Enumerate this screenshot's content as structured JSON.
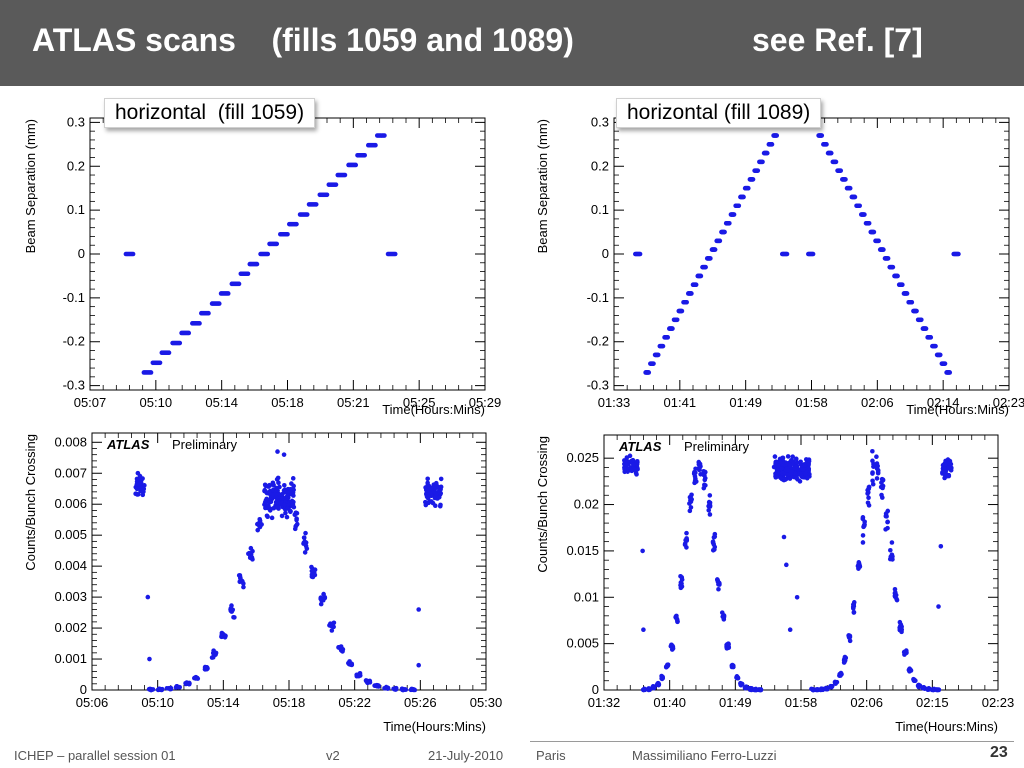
{
  "header": {
    "title": "ATLAS scans    (fills 1059 and 1089)",
    "reference": "see Ref. [7]"
  },
  "colors": {
    "marker": "#1a1ae6",
    "header_bg": "#5a5a5a"
  },
  "footer": {
    "conference": "ICHEP – parallel session 01",
    "version": "v2",
    "date": "21-July-2010",
    "place": "Paris",
    "author": "Massimiliano Ferro-Luzzi",
    "page": "23"
  },
  "chart_data": [
    {
      "id": "scan-1059",
      "type": "scatter",
      "label": "horizontal  (fill 1059)",
      "xlabel": "Time(Hours:Mins)",
      "ylabel": "Beam Separation (mm)",
      "x_ticks": [
        "05:07",
        "05:10",
        "05:14",
        "05:18",
        "05:21",
        "05:25",
        "05:29"
      ],
      "xlim_minutes": [
        307,
        329
      ],
      "ylim": [
        -0.31,
        0.31
      ],
      "y_ticks": [
        -0.3,
        -0.2,
        -0.1,
        0,
        0.1,
        0.2,
        0.3
      ],
      "y_tick_labels": [
        "-0.3",
        "-0.2",
        "-0.1",
        "0",
        "0.1",
        "0.2",
        "0.3"
      ],
      "grid": false,
      "step_plateaus": [
        {
          "x": [
            309.0,
            309.4
          ],
          "y": 0
        },
        {
          "x": [
            310.0,
            310.4
          ],
          "y": -0.27
        },
        {
          "x": [
            310.5,
            310.9
          ],
          "y": -0.248
        },
        {
          "x": [
            311.0,
            311.4
          ],
          "y": -0.225
        },
        {
          "x": [
            311.6,
            312.0
          ],
          "y": -0.203
        },
        {
          "x": [
            312.1,
            312.5
          ],
          "y": -0.18
        },
        {
          "x": [
            312.7,
            313.1
          ],
          "y": -0.158
        },
        {
          "x": [
            313.2,
            313.6
          ],
          "y": -0.135
        },
        {
          "x": [
            313.8,
            314.2
          ],
          "y": -0.113
        },
        {
          "x": [
            314.3,
            314.7
          ],
          "y": -0.09
        },
        {
          "x": [
            314.9,
            315.3
          ],
          "y": -0.068
        },
        {
          "x": [
            315.4,
            315.8
          ],
          "y": -0.045
        },
        {
          "x": [
            315.9,
            316.3
          ],
          "y": -0.023
        },
        {
          "x": [
            316.5,
            316.9
          ],
          "y": 0
        },
        {
          "x": [
            317.0,
            317.4
          ],
          "y": 0.023
        },
        {
          "x": [
            317.6,
            318.0
          ],
          "y": 0.045
        },
        {
          "x": [
            318.1,
            318.5
          ],
          "y": 0.068
        },
        {
          "x": [
            318.7,
            319.1
          ],
          "y": 0.09
        },
        {
          "x": [
            319.2,
            319.6
          ],
          "y": 0.113
        },
        {
          "x": [
            319.8,
            320.2
          ],
          "y": 0.135
        },
        {
          "x": [
            320.3,
            320.7
          ],
          "y": 0.158
        },
        {
          "x": [
            320.8,
            321.2
          ],
          "y": 0.18
        },
        {
          "x": [
            321.4,
            321.8
          ],
          "y": 0.203
        },
        {
          "x": [
            321.9,
            322.3
          ],
          "y": 0.225
        },
        {
          "x": [
            322.5,
            322.9
          ],
          "y": 0.248
        },
        {
          "x": [
            323.0,
            323.4
          ],
          "y": 0.27
        },
        {
          "x": [
            323.6,
            324.0
          ],
          "y": 0
        }
      ]
    },
    {
      "id": "scan-1089",
      "type": "scatter",
      "label": "horizontal (fill 1089)",
      "xlabel": "Time(Hours:Mins)",
      "ylabel": "Beam Separation (mm)",
      "x_ticks": [
        "01:33",
        "01:41",
        "01:49",
        "01:58",
        "02:06",
        "02:14",
        "02:23"
      ],
      "xlim_minutes": [
        93,
        143
      ],
      "ylim": [
        -0.31,
        0.31
      ],
      "y_ticks": [
        -0.3,
        -0.2,
        -0.1,
        0,
        0.1,
        0.2,
        0.3
      ],
      "y_tick_labels": [
        "-0.3",
        "-0.2",
        "-0.1",
        "0",
        "0.1",
        "0.2",
        "0.3"
      ],
      "grid": false,
      "step_plateaus": [
        {
          "x": [
            95.7,
            96.3
          ],
          "y": 0
        },
        {
          "x": [
            97.0,
            97.4
          ],
          "y": -0.27
        },
        {
          "x": [
            97.6,
            98.0
          ],
          "y": -0.25
        },
        {
          "x": [
            98.2,
            98.6
          ],
          "y": -0.23
        },
        {
          "x": [
            98.8,
            99.2
          ],
          "y": -0.21
        },
        {
          "x": [
            99.4,
            99.8
          ],
          "y": -0.19
        },
        {
          "x": [
            100.0,
            100.4
          ],
          "y": -0.17
        },
        {
          "x": [
            100.6,
            101.0
          ],
          "y": -0.15
        },
        {
          "x": [
            101.2,
            101.6
          ],
          "y": -0.13
        },
        {
          "x": [
            101.8,
            102.2
          ],
          "y": -0.11
        },
        {
          "x": [
            102.4,
            102.8
          ],
          "y": -0.09
        },
        {
          "x": [
            103.0,
            103.4
          ],
          "y": -0.07
        },
        {
          "x": [
            103.6,
            104.0
          ],
          "y": -0.05
        },
        {
          "x": [
            104.2,
            104.6
          ],
          "y": -0.03
        },
        {
          "x": [
            104.8,
            105.2
          ],
          "y": -0.01
        },
        {
          "x": [
            105.4,
            105.8
          ],
          "y": 0.01
        },
        {
          "x": [
            106.0,
            106.4
          ],
          "y": 0.03
        },
        {
          "x": [
            106.6,
            107.0
          ],
          "y": 0.05
        },
        {
          "x": [
            107.2,
            107.6
          ],
          "y": 0.07
        },
        {
          "x": [
            107.8,
            108.2
          ],
          "y": 0.09
        },
        {
          "x": [
            108.4,
            108.8
          ],
          "y": 0.11
        },
        {
          "x": [
            109.0,
            109.4
          ],
          "y": 0.13
        },
        {
          "x": [
            109.6,
            110.0
          ],
          "y": 0.15
        },
        {
          "x": [
            110.2,
            110.6
          ],
          "y": 0.17
        },
        {
          "x": [
            110.8,
            111.2
          ],
          "y": 0.19
        },
        {
          "x": [
            111.4,
            111.8
          ],
          "y": 0.21
        },
        {
          "x": [
            112.0,
            112.4
          ],
          "y": 0.23
        },
        {
          "x": [
            112.6,
            113.0
          ],
          "y": 0.25
        },
        {
          "x": [
            113.2,
            113.6
          ],
          "y": 0.27
        },
        {
          "x": [
            114.3,
            114.9
          ],
          "y": 0
        },
        {
          "x": [
            117.6,
            118.2
          ],
          "y": 0
        },
        {
          "x": [
            118.9,
            119.3
          ],
          "y": 0.27
        },
        {
          "x": [
            119.5,
            119.9
          ],
          "y": 0.25
        },
        {
          "x": [
            120.1,
            120.5
          ],
          "y": 0.23
        },
        {
          "x": [
            120.7,
            121.1
          ],
          "y": 0.21
        },
        {
          "x": [
            121.3,
            121.7
          ],
          "y": 0.19
        },
        {
          "x": [
            121.9,
            122.3
          ],
          "y": 0.17
        },
        {
          "x": [
            122.5,
            122.9
          ],
          "y": 0.15
        },
        {
          "x": [
            123.1,
            123.5
          ],
          "y": 0.13
        },
        {
          "x": [
            123.7,
            124.1
          ],
          "y": 0.11
        },
        {
          "x": [
            124.3,
            124.7
          ],
          "y": 0.09
        },
        {
          "x": [
            124.9,
            125.3
          ],
          "y": 0.07
        },
        {
          "x": [
            125.5,
            125.9
          ],
          "y": 0.05
        },
        {
          "x": [
            126.1,
            126.5
          ],
          "y": 0.03
        },
        {
          "x": [
            126.7,
            127.1
          ],
          "y": 0.01
        },
        {
          "x": [
            127.3,
            127.7
          ],
          "y": -0.01
        },
        {
          "x": [
            127.9,
            128.3
          ],
          "y": -0.03
        },
        {
          "x": [
            128.5,
            128.9
          ],
          "y": -0.05
        },
        {
          "x": [
            129.1,
            129.5
          ],
          "y": -0.07
        },
        {
          "x": [
            129.7,
            130.1
          ],
          "y": -0.09
        },
        {
          "x": [
            130.3,
            130.7
          ],
          "y": -0.11
        },
        {
          "x": [
            130.9,
            131.3
          ],
          "y": -0.13
        },
        {
          "x": [
            131.5,
            131.9
          ],
          "y": -0.15
        },
        {
          "x": [
            132.1,
            132.5
          ],
          "y": -0.17
        },
        {
          "x": [
            132.7,
            133.1
          ],
          "y": -0.19
        },
        {
          "x": [
            133.3,
            133.7
          ],
          "y": -0.21
        },
        {
          "x": [
            133.9,
            134.3
          ],
          "y": -0.23
        },
        {
          "x": [
            134.5,
            134.9
          ],
          "y": -0.25
        },
        {
          "x": [
            135.1,
            135.5
          ],
          "y": -0.27
        },
        {
          "x": [
            136.0,
            136.6
          ],
          "y": 0
        }
      ]
    },
    {
      "id": "rate-1059",
      "type": "scatter",
      "label": "ATLAS",
      "sublabel": "Preliminary",
      "xlabel": "Time(Hours:Mins)",
      "ylabel": "Counts/Bunch Crossing",
      "x_ticks": [
        "05:06",
        "05:10",
        "05:14",
        "05:18",
        "05:22",
        "05:26",
        "05:30"
      ],
      "xlim_minutes": [
        306,
        330
      ],
      "ylim": [
        0,
        0.0083
      ],
      "y_ticks": [
        0,
        0.001,
        0.002,
        0.003,
        0.004,
        0.005,
        0.006,
        0.007,
        0.008
      ],
      "y_tick_labels": [
        "0",
        "0.001",
        "0.002",
        "0.003",
        "0.004",
        "0.005",
        "0.006",
        "0.007",
        "0.008"
      ],
      "grid": false,
      "point_groups": [
        {
          "x": [
            308.6,
            309.2
          ],
          "y_center": 0.0066,
          "y_spread": 0.0007,
          "n": 40
        },
        {
          "x": [
            316.5,
            318.3
          ],
          "y_center": 0.0062,
          "y_spread": 0.0011,
          "n": 110
        },
        {
          "x": [
            326.3,
            327.3
          ],
          "y_center": 0.0064,
          "y_spread": 0.0008,
          "n": 65
        }
      ],
      "points": [
        [
          309.4,
          0.003
        ],
        [
          309.5,
          0.001
        ],
        [
          325.9,
          0.0026
        ],
        [
          325.9,
          0.0008
        ],
        [
          317.3,
          0.0077
        ],
        [
          317.7,
          0.0076
        ]
      ],
      "scan_profile": {
        "peak": 0.0062,
        "center_min": 317.4,
        "sigma_min": 2.15,
        "x_range": [
          309.6,
          325.8
        ],
        "step_min": 0.55,
        "n_per_step": 10
      }
    },
    {
      "id": "rate-1089",
      "type": "scatter",
      "label": "ATLAS",
      "sublabel": "Preliminary",
      "xlabel": "Time(Hours:Mins)",
      "ylabel": "Counts/Bunch Crossing",
      "x_ticks": [
        "01:32",
        "01:40",
        "01:49",
        "01:58",
        "02:06",
        "02:15",
        "02:23"
      ],
      "xlim_minutes": [
        92,
        143
      ],
      "ylim": [
        0,
        0.0275
      ],
      "y_ticks": [
        0,
        0.005,
        0.01,
        0.015,
        0.02,
        0.025
      ],
      "y_tick_labels": [
        "0",
        "0.005",
        "0.01",
        "0.015",
        "0.02",
        "0.025"
      ],
      "grid": false,
      "point_groups": [
        {
          "x": [
            94.6,
            96.4
          ],
          "y_center": 0.024,
          "y_spread": 0.002,
          "n": 45
        },
        {
          "x": [
            114.0,
            118.6
          ],
          "y_center": 0.0238,
          "y_spread": 0.0022,
          "n": 220
        },
        {
          "x": [
            135.8,
            137.0
          ],
          "y_center": 0.0238,
          "y_spread": 0.002,
          "n": 35
        }
      ],
      "points": [
        [
          97.0,
          0.015
        ],
        [
          97.1,
          0.0065
        ],
        [
          115.3,
          0.0165
        ],
        [
          115.6,
          0.0135
        ],
        [
          116.1,
          0.0065
        ],
        [
          117.0,
          0.01
        ],
        [
          135.6,
          0.0155
        ],
        [
          135.3,
          0.009
        ]
      ],
      "scan_profiles": [
        {
          "peak": 0.024,
          "center_min": 104.4,
          "sigma_min": 2.0,
          "x_range": [
            97.2,
            112.6
          ],
          "step_min": 0.6,
          "n_per_step": 9
        },
        {
          "peak": 0.024,
          "center_min": 127.2,
          "sigma_min": 2.0,
          "x_range": [
            119.0,
            135.2
          ],
          "step_min": 0.6,
          "n_per_step": 9
        }
      ]
    }
  ]
}
